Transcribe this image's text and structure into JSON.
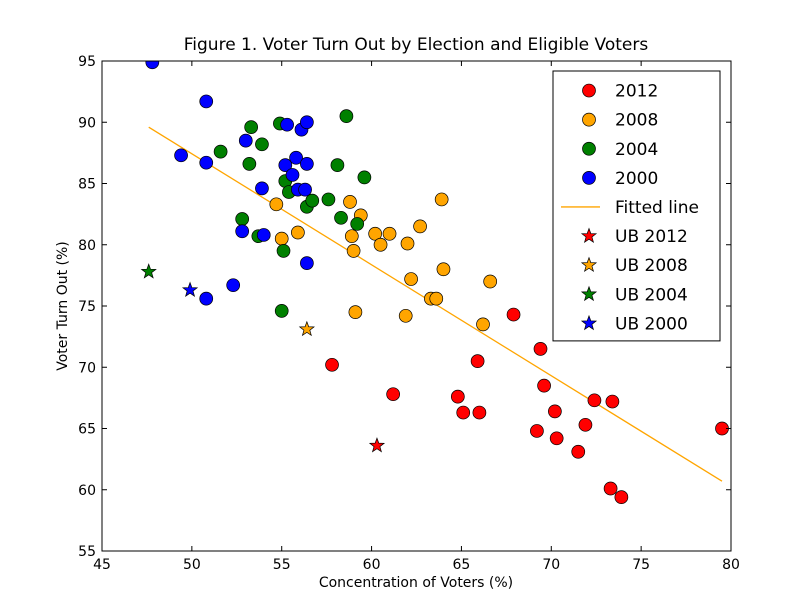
{
  "chart_data": {
    "type": "scatter",
    "title": "Figure 1. Voter Turn Out by Election and Eligible Voters",
    "xlabel": "Concentration of Voters (%)",
    "ylabel": "Voter Turn Out (%)",
    "xlim": [
      45,
      80
    ],
    "ylim": [
      55,
      95
    ],
    "xticks": [
      "45",
      "50",
      "55",
      "60",
      "65",
      "70",
      "75",
      "80"
    ],
    "yticks": [
      "55",
      "60",
      "65",
      "70",
      "75",
      "80",
      "85",
      "90",
      "95"
    ],
    "grid": false,
    "legend_position": "top-right",
    "series": [
      {
        "name": "2012",
        "marker": "circle",
        "color": "#ff0000",
        "points": [
          [
            57.8,
            70.2
          ],
          [
            61.2,
            67.8
          ],
          [
            64.8,
            67.6
          ],
          [
            65.1,
            66.3
          ],
          [
            65.9,
            70.5
          ],
          [
            66.0,
            66.3
          ],
          [
            67.9,
            74.3
          ],
          [
            69.2,
            64.8
          ],
          [
            69.4,
            71.5
          ],
          [
            69.6,
            68.5
          ],
          [
            70.2,
            66.4
          ],
          [
            70.3,
            64.2
          ],
          [
            71.5,
            63.1
          ],
          [
            71.9,
            65.3
          ],
          [
            72.4,
            67.3
          ],
          [
            73.3,
            60.1
          ],
          [
            73.4,
            67.2
          ],
          [
            73.9,
            59.4
          ],
          [
            79.5,
            65.0
          ]
        ]
      },
      {
        "name": "2008",
        "marker": "circle",
        "color": "#ffa500",
        "points": [
          [
            54.7,
            83.3
          ],
          [
            55.0,
            80.5
          ],
          [
            55.9,
            81.0
          ],
          [
            58.8,
            83.5
          ],
          [
            58.9,
            80.7
          ],
          [
            59.0,
            79.5
          ],
          [
            59.1,
            74.5
          ],
          [
            59.4,
            82.4
          ],
          [
            60.2,
            80.9
          ],
          [
            60.5,
            80.0
          ],
          [
            61.0,
            80.9
          ],
          [
            61.9,
            74.2
          ],
          [
            62.0,
            80.1
          ],
          [
            62.2,
            77.2
          ],
          [
            62.7,
            81.5
          ],
          [
            63.3,
            75.6
          ],
          [
            63.6,
            75.6
          ],
          [
            63.9,
            83.7
          ],
          [
            64.0,
            78.0
          ],
          [
            66.2,
            73.5
          ],
          [
            66.6,
            77.0
          ]
        ]
      },
      {
        "name": "2004",
        "marker": "circle",
        "color": "#008000",
        "points": [
          [
            51.6,
            87.6
          ],
          [
            52.8,
            82.1
          ],
          [
            53.2,
            86.6
          ],
          [
            53.3,
            89.6
          ],
          [
            53.7,
            80.7
          ],
          [
            53.9,
            88.2
          ],
          [
            54.9,
            89.9
          ],
          [
            55.0,
            74.6
          ],
          [
            55.1,
            79.5
          ],
          [
            55.2,
            85.2
          ],
          [
            55.4,
            84.3
          ],
          [
            56.4,
            83.1
          ],
          [
            56.7,
            83.6
          ],
          [
            57.6,
            83.7
          ],
          [
            58.1,
            86.5
          ],
          [
            58.3,
            82.2
          ],
          [
            58.6,
            90.5
          ],
          [
            59.2,
            81.7
          ],
          [
            59.6,
            85.5
          ]
        ]
      },
      {
        "name": "2000",
        "marker": "circle",
        "color": "#0000ff",
        "points": [
          [
            47.8,
            94.9
          ],
          [
            49.4,
            87.3
          ],
          [
            50.8,
            86.7
          ],
          [
            50.8,
            91.7
          ],
          [
            50.8,
            75.6
          ],
          [
            52.3,
            76.7
          ],
          [
            52.8,
            81.1
          ],
          [
            53.0,
            88.5
          ],
          [
            53.9,
            84.6
          ],
          [
            54.0,
            80.8
          ],
          [
            55.2,
            86.5
          ],
          [
            55.3,
            89.8
          ],
          [
            55.6,
            85.7
          ],
          [
            55.8,
            87.1
          ],
          [
            55.9,
            84.5
          ],
          [
            56.1,
            89.4
          ],
          [
            56.3,
            84.5
          ],
          [
            56.4,
            90.0
          ],
          [
            56.4,
            86.6
          ],
          [
            56.4,
            78.5
          ]
        ]
      },
      {
        "name": "Fitted line",
        "marker": "line",
        "color": "#ffa500",
        "points": [
          [
            47.6,
            89.6
          ],
          [
            79.5,
            60.7
          ]
        ]
      },
      {
        "name": "UB 2012",
        "marker": "star",
        "color": "#ff0000",
        "points": [
          [
            60.3,
            63.6
          ]
        ]
      },
      {
        "name": "UB 2008",
        "marker": "star",
        "color": "#ffa500",
        "points": [
          [
            56.4,
            73.1
          ]
        ]
      },
      {
        "name": "UB 2004",
        "marker": "star",
        "color": "#008000",
        "points": [
          [
            47.6,
            77.8
          ]
        ]
      },
      {
        "name": "UB 2000",
        "marker": "star",
        "color": "#0000ff",
        "points": [
          [
            49.9,
            76.3
          ]
        ]
      }
    ]
  }
}
